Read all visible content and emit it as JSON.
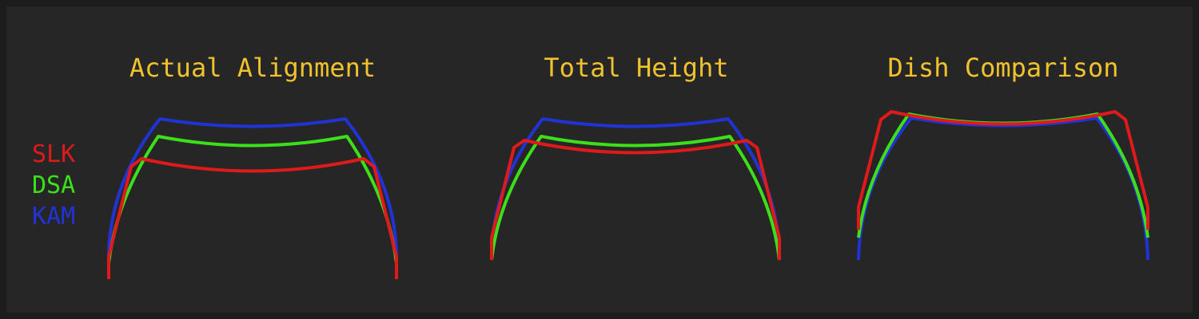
{
  "colors": {
    "frame": "#1c1c1c",
    "background": "#262626",
    "title": "#f0c22e",
    "slk": "#e01a1a",
    "dsa": "#3ce01a",
    "kam": "#2233d6"
  },
  "titles": [
    "Actual Alignment",
    "Total Height",
    "Dish Comparison"
  ],
  "legend": [
    {
      "label": "SLK",
      "color_key": "slk"
    },
    {
      "label": "DSA",
      "color_key": "dsa"
    },
    {
      "label": "KAM",
      "color_key": "kam"
    }
  ]
}
